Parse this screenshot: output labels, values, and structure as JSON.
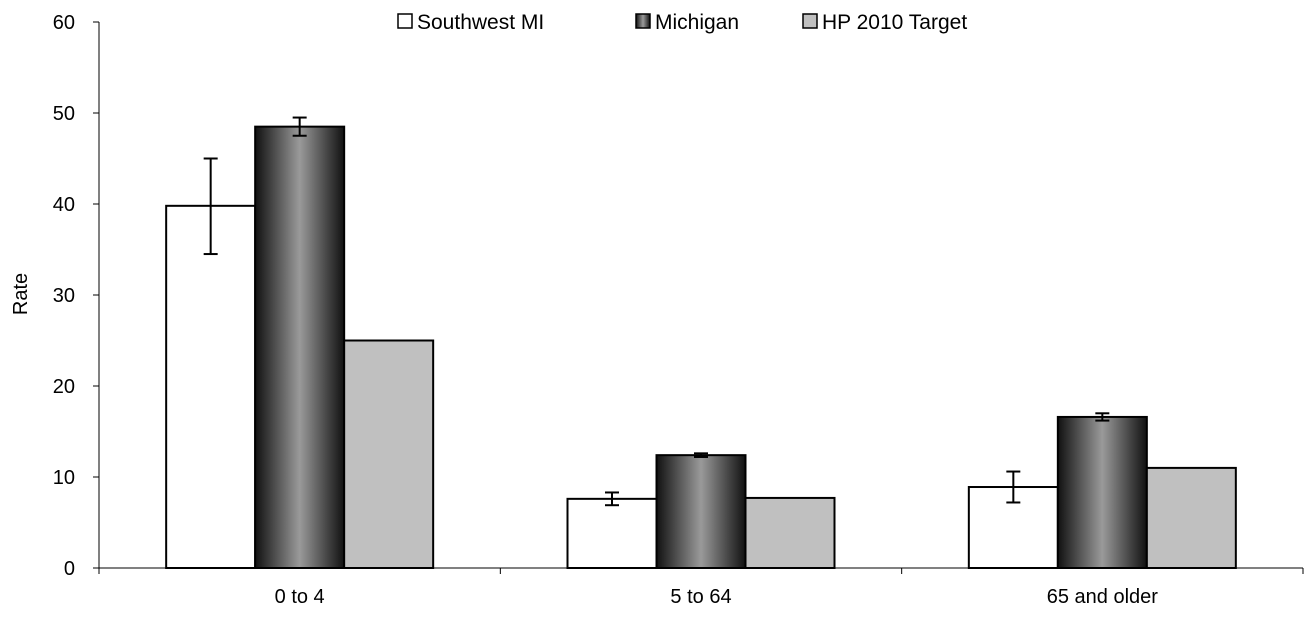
{
  "chart_data": {
    "type": "bar",
    "title": "",
    "xlabel": "",
    "ylabel": "Rate",
    "ylim": [
      0,
      60
    ],
    "yticks": [
      0,
      10,
      20,
      30,
      40,
      50,
      60
    ],
    "grid": false,
    "legend_position": "top",
    "categories": [
      "0 to 4",
      "5 to 64",
      "65 and older"
    ],
    "series": [
      {
        "name": "Southwest MI",
        "values": [
          39.8,
          7.6,
          8.9
        ],
        "error_low": [
          34.5,
          6.9,
          7.2
        ],
        "error_high": [
          45.0,
          8.3,
          10.6
        ],
        "color": "#ffffff"
      },
      {
        "name": "Michigan",
        "values": [
          48.5,
          12.4,
          16.6
        ],
        "error_low": [
          47.5,
          12.2,
          16.2
        ],
        "error_high": [
          49.5,
          12.6,
          17.0
        ],
        "color": "#909090"
      },
      {
        "name": "HP 2010 Target",
        "values": [
          25.0,
          7.7,
          11.0
        ],
        "color": "#c0c0c0"
      }
    ]
  }
}
